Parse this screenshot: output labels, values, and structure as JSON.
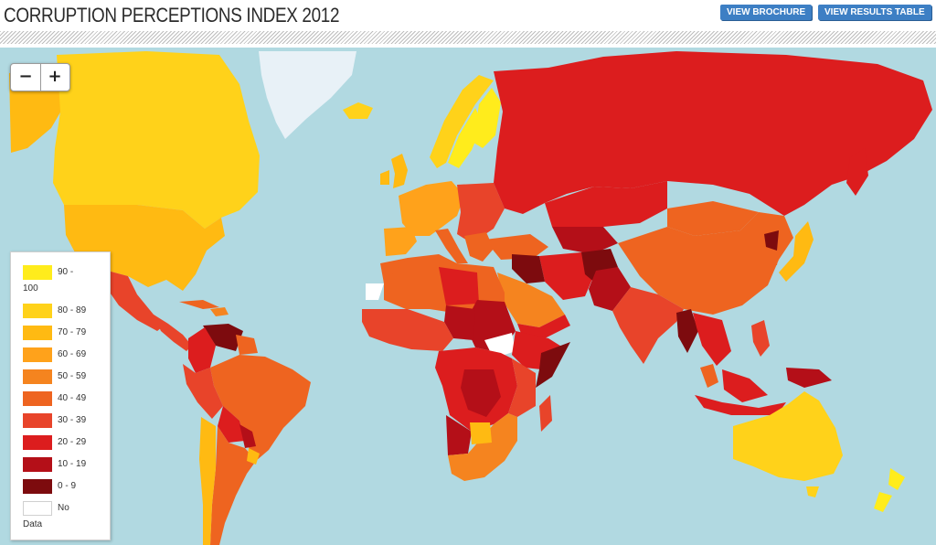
{
  "header": {
    "title": "CORRUPTION PERCEPTIONS INDEX 2012",
    "buttons": {
      "brochure": "VIEW BROCHURE",
      "results": "VIEW RESULTS TABLE"
    }
  },
  "zoom": {
    "minus": "−",
    "plus": "+"
  },
  "legend": {
    "items": [
      {
        "label": "90 -",
        "label2": "100",
        "color": "#ffec1c"
      },
      {
        "label": "80 - 89",
        "color": "#ffd21a"
      },
      {
        "label": "70 - 79",
        "color": "#ffba12"
      },
      {
        "label": "60 - 69",
        "color": "#ffa21b"
      },
      {
        "label": "50 - 59",
        "color": "#f5841f"
      },
      {
        "label": "40 - 49",
        "color": "#ee6420"
      },
      {
        "label": "30 - 39",
        "color": "#e8442a"
      },
      {
        "label": "20 - 29",
        "color": "#dc1d1e"
      },
      {
        "label": "10 - 19",
        "color": "#b40f18"
      },
      {
        "label": "0 - 9",
        "color": "#7d0b0e"
      },
      {
        "label": "No",
        "label2": "Data",
        "color": "#ffffff"
      }
    ]
  },
  "colors": {
    "ocean": "#b1d9e1",
    "greenland": "#e8f1f7"
  }
}
